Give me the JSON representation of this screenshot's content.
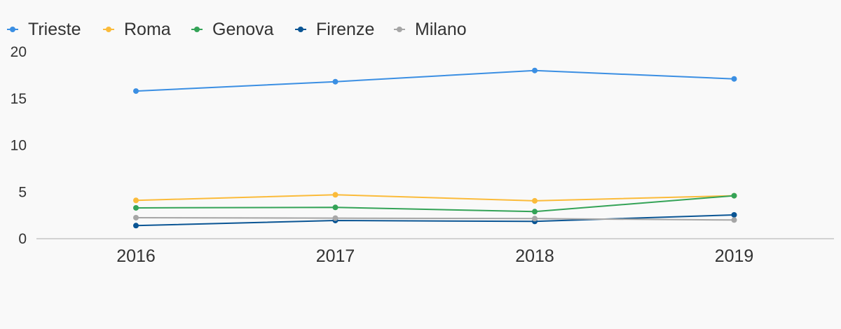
{
  "chart_data": {
    "type": "line",
    "title": "",
    "xlabel": "",
    "ylabel": "",
    "categories": [
      "2016",
      "2017",
      "2018",
      "2019"
    ],
    "ylim": [
      0,
      20
    ],
    "yticks": [
      "0",
      "5",
      "10",
      "15",
      "20"
    ],
    "grid": false,
    "legend_position": "top-left",
    "series": [
      {
        "name": "Trieste",
        "color": "#3b8fe3",
        "values": [
          15.8,
          16.8,
          18.0,
          17.1
        ]
      },
      {
        "name": "Roma",
        "color": "#fbbb3a",
        "values": [
          4.1,
          4.7,
          4.05,
          4.6
        ]
      },
      {
        "name": "Genova",
        "color": "#34a357",
        "values": [
          3.3,
          3.35,
          2.9,
          4.6
        ]
      },
      {
        "name": "Firenze",
        "color": "#0a5594",
        "values": [
          1.4,
          1.95,
          1.85,
          2.55
        ]
      },
      {
        "name": "Milano",
        "color": "#a6a6a6",
        "values": [
          2.25,
          2.2,
          2.15,
          2.0
        ]
      }
    ]
  }
}
